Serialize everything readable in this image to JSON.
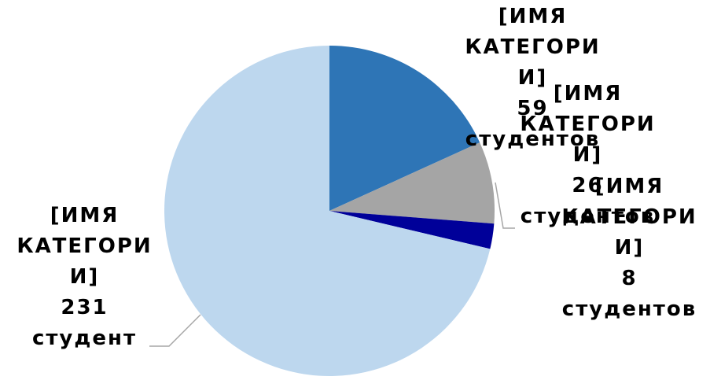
{
  "chart_data": {
    "type": "pie",
    "categories": [
      "[ИМЯ КАТЕГОРИИ]",
      "[ИМЯ КАТЕГОРИИ]",
      "[ИМЯ КАТЕГОРИИ]",
      "[ИМЯ КАТЕГОРИИ]"
    ],
    "values": [
      59,
      26,
      8,
      231
    ],
    "value_labels": [
      "59 студентов",
      "26 студентов",
      "8 студентов",
      "231 студент"
    ],
    "colors": [
      "#2e75b6",
      "#a5a5a5",
      "#000099",
      "#bdd7ee"
    ]
  }
}
